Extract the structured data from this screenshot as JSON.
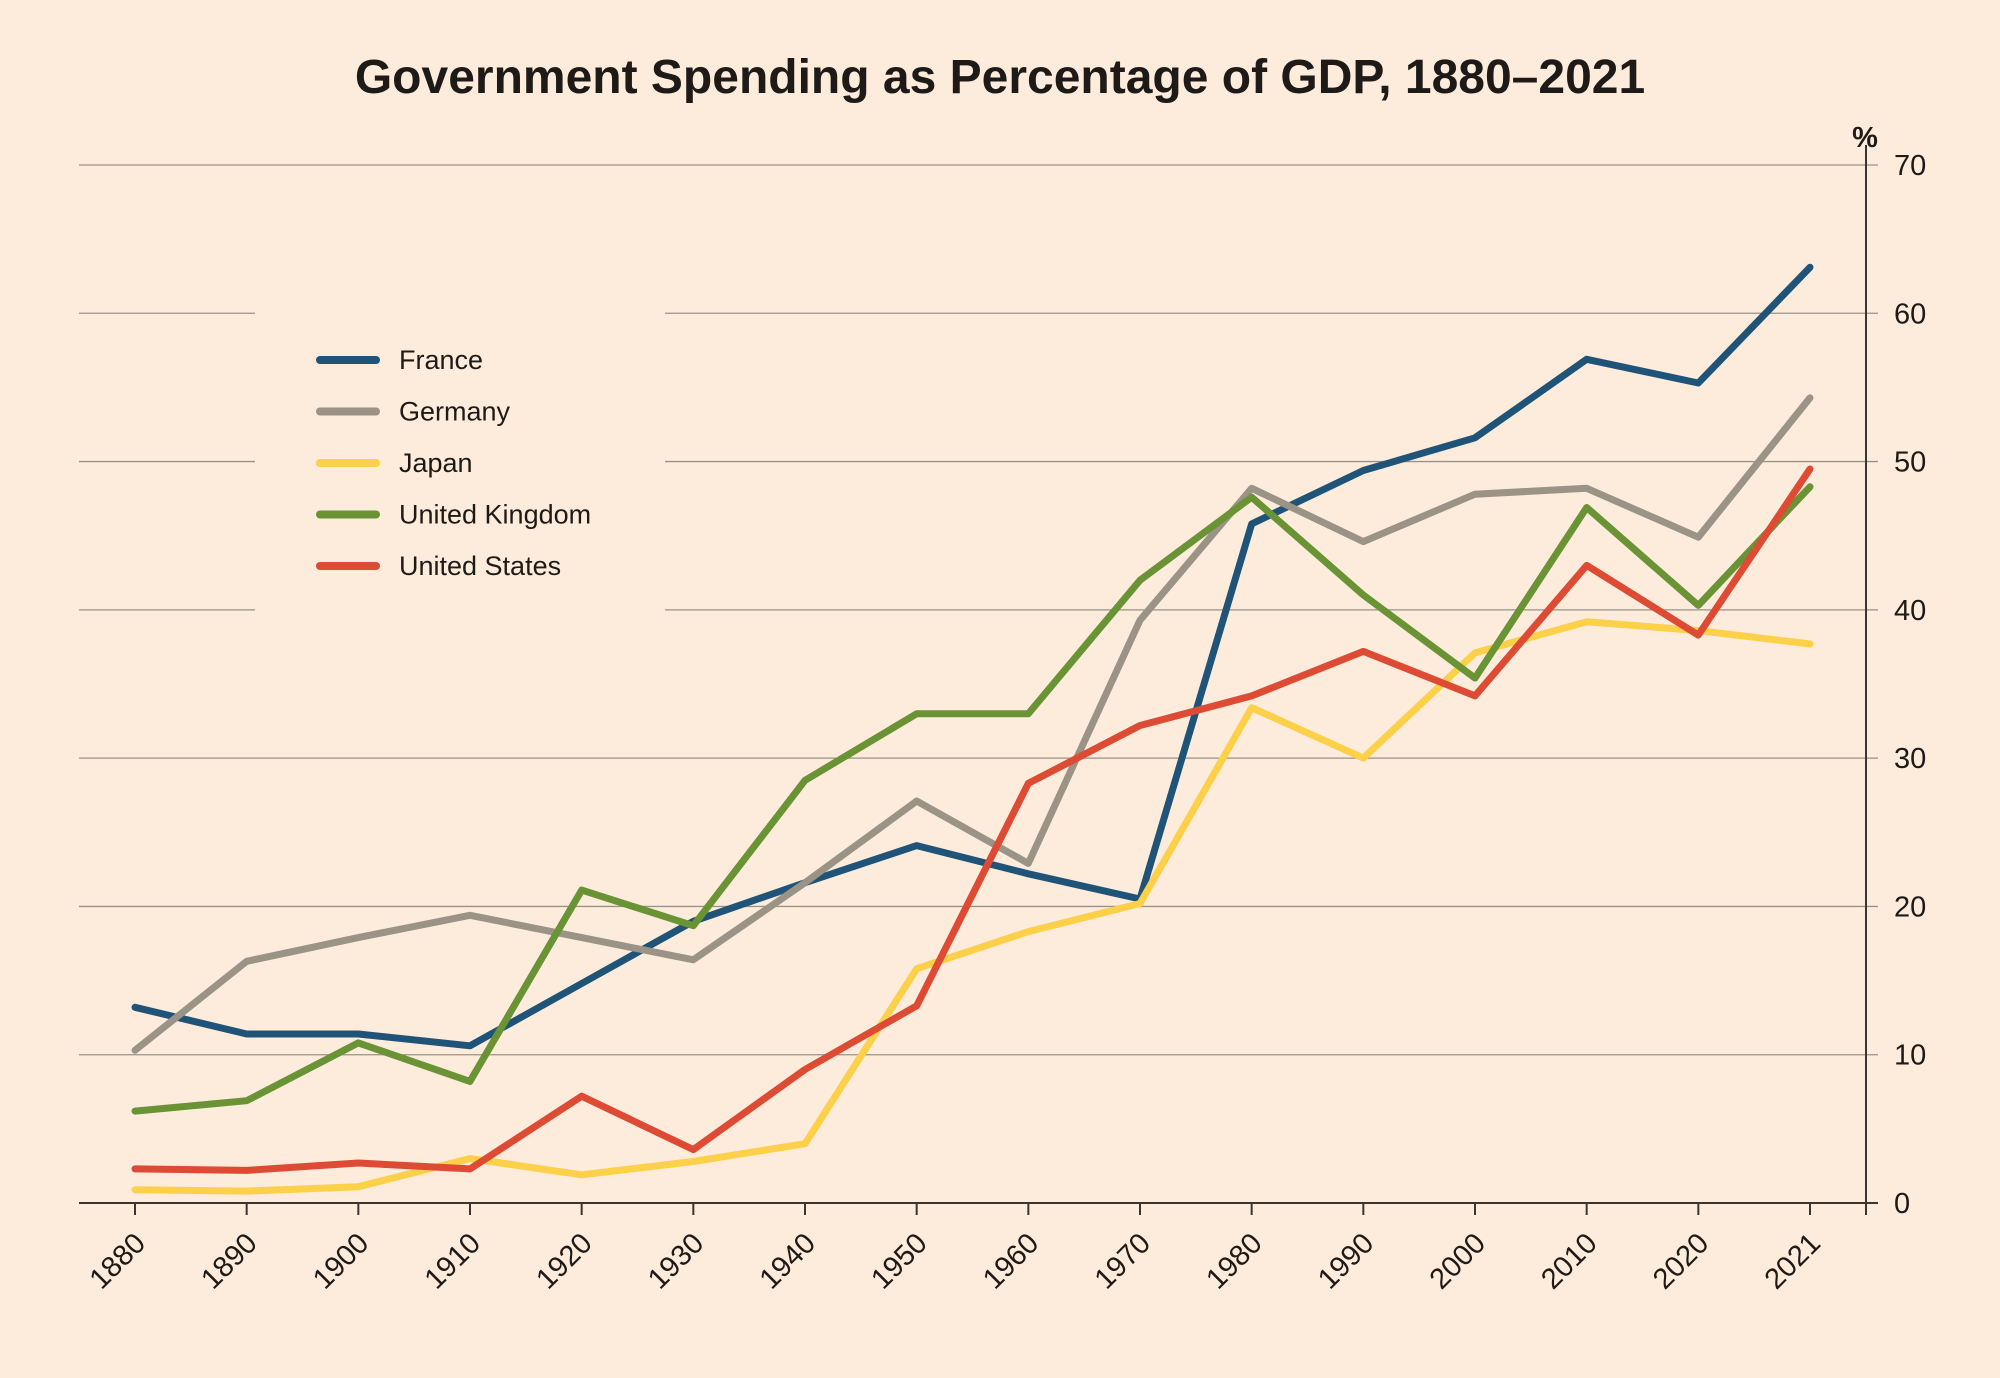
{
  "chart_data": {
    "type": "line",
    "title": "Government Spending as Percentage of GDP, 1880–2021",
    "ylabel": "%",
    "xlabel": "",
    "ylim": [
      0,
      70
    ],
    "yticks": [
      0,
      10,
      20,
      30,
      40,
      50,
      60,
      70
    ],
    "y_axis_side": "right",
    "grid": true,
    "legend_position": "upper-left",
    "categories": [
      "1880",
      "1890",
      "1900",
      "1910",
      "1920",
      "1930",
      "1940",
      "1950",
      "1960",
      "1970",
      "1980",
      "1990",
      "2000",
      "2010",
      "2020",
      "2021"
    ],
    "series": [
      {
        "name": "France",
        "color": "#1f5478",
        "values": [
          13.2,
          11.4,
          11.4,
          10.6,
          14.8,
          19.0,
          21.6,
          24.1,
          22.2,
          20.5,
          45.8,
          49.4,
          51.6,
          56.9,
          55.3,
          63.1
        ]
      },
      {
        "name": "Germany",
        "color": "#9b9385",
        "values": [
          10.3,
          16.3,
          17.9,
          19.4,
          17.9,
          16.4,
          21.6,
          27.1,
          22.9,
          39.3,
          48.2,
          44.6,
          47.8,
          48.2,
          44.9,
          54.3
        ]
      },
      {
        "name": "Japan",
        "color": "#fdd04a",
        "values": [
          0.9,
          0.8,
          1.1,
          3.0,
          1.9,
          2.8,
          4.0,
          15.8,
          18.3,
          20.2,
          33.4,
          30.0,
          37.1,
          39.2,
          38.6,
          37.7
        ]
      },
      {
        "name": "United Kingdom",
        "color": "#6a9335",
        "values": [
          6.2,
          6.9,
          10.8,
          8.2,
          21.1,
          18.7,
          28.5,
          33.0,
          33.0,
          42.0,
          47.6,
          41.0,
          35.4,
          46.9,
          40.3,
          48.3
        ]
      },
      {
        "name": "United States",
        "color": "#dd4b34",
        "values": [
          2.3,
          2.2,
          2.7,
          2.3,
          7.2,
          3.6,
          9.0,
          13.3,
          28.3,
          32.2,
          34.2,
          37.2,
          34.2,
          43.0,
          38.3,
          49.5
        ]
      }
    ]
  }
}
